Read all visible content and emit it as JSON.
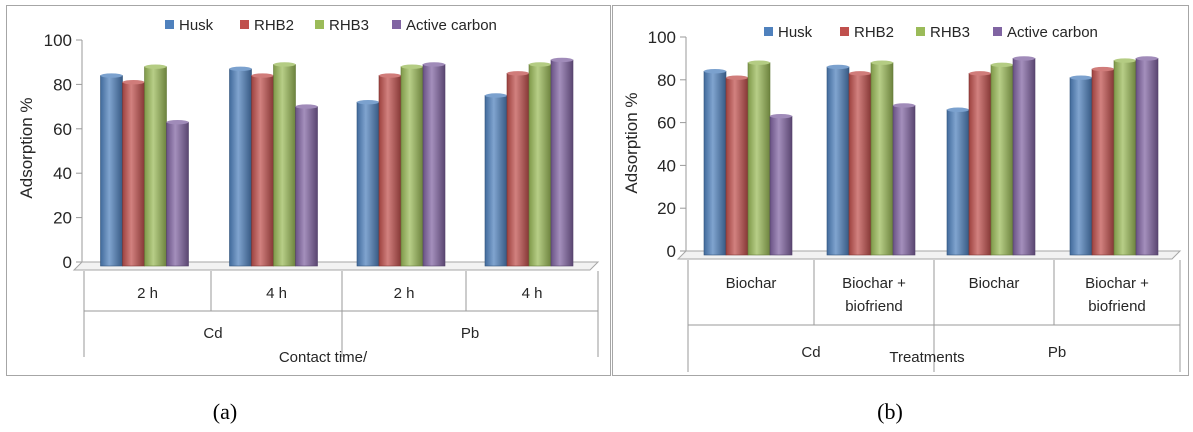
{
  "colors": {
    "Husk": "#4f81bd",
    "RHB2": "#c0504d",
    "RHB3": "#9bbb59",
    "Active carbon": "#8064a2"
  },
  "chart_data": [
    {
      "type": "bar",
      "panel_caption": "(a)",
      "ylabel": "Adsorption %",
      "xlabel": "Contact time/",
      "ylim": [
        0,
        100
      ],
      "yticks": [
        0,
        20,
        40,
        60,
        80,
        100
      ],
      "legend": [
        "Husk",
        "RHB2",
        "RHB3",
        "Active carbon"
      ],
      "legend_position": "top",
      "categories": [
        "2 h",
        "4 h",
        "2 h",
        "4 h"
      ],
      "groups": [
        {
          "label": "Cd",
          "span": [
            0,
            1
          ]
        },
        {
          "label": "Pb",
          "span": [
            2,
            3
          ]
        }
      ],
      "series": [
        {
          "name": "Husk",
          "values": [
            84,
            87,
            72,
            75
          ]
        },
        {
          "name": "RHB2",
          "values": [
            81,
            84,
            84,
            85
          ]
        },
        {
          "name": "RHB3",
          "values": [
            88,
            89,
            88,
            89
          ]
        },
        {
          "name": "Active carbon",
          "values": [
            63,
            70,
            89,
            91
          ]
        }
      ]
    },
    {
      "type": "bar",
      "panel_caption": "(b)",
      "ylabel": "Adsorption %",
      "xlabel": "Treatments",
      "ylim": [
        0,
        100
      ],
      "yticks": [
        0,
        20,
        40,
        60,
        80,
        100
      ],
      "legend": [
        "Husk",
        "RHB2",
        "RHB3",
        "Active carbon"
      ],
      "legend_position": "top",
      "categories": [
        [
          "Biochar"
        ],
        [
          "Biochar +",
          "biofriend"
        ],
        [
          "Biochar"
        ],
        [
          "Biochar +",
          "biofriend"
        ]
      ],
      "groups": [
        {
          "label": "Cd",
          "span": [
            0,
            1
          ]
        },
        {
          "label": "Pb",
          "span": [
            2,
            3
          ]
        }
      ],
      "series": [
        {
          "name": "Husk",
          "values": [
            84,
            86,
            66,
            81
          ]
        },
        {
          "name": "RHB2",
          "values": [
            81,
            83,
            83,
            85
          ]
        },
        {
          "name": "RHB3",
          "values": [
            88,
            88,
            87,
            89
          ]
        },
        {
          "name": "Active carbon",
          "values": [
            63,
            68,
            90,
            90
          ]
        }
      ]
    }
  ]
}
